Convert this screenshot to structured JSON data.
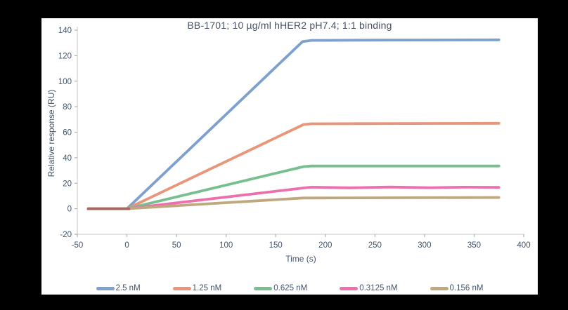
{
  "window": {
    "background_color": "#000000",
    "panel_color": "#ffffff"
  },
  "chart_data": {
    "type": "line",
    "title": "BB-1701; 10 µg/ml hHER2 pH7.4; 1:1 binding",
    "xlabel": "Time (s)",
    "ylabel": "Relative response (RU)",
    "xlim": [
      -50,
      400
    ],
    "ylim": [
      -20,
      140
    ],
    "xticks": [
      -50,
      0,
      50,
      100,
      150,
      200,
      250,
      300,
      350,
      400
    ],
    "yticks": [
      -20,
      0,
      20,
      40,
      60,
      80,
      100,
      120,
      140
    ],
    "grid": false,
    "legend_position": "bottom",
    "axis_line_color": "#d4d4d4",
    "tick_mark_color": "#aab0b8",
    "tick_label_color": "#44546a",
    "title_color": "#475061",
    "line_width": 3.8,
    "baseline_overlay": {
      "description": "overlapping baselines of all concentrations blend to brownish red",
      "color": "#a4695e",
      "points": [
        [
          -39,
          0
        ],
        [
          2,
          0
        ]
      ]
    },
    "series": [
      {
        "name": "2.5 nM",
        "color": "#7da0cf",
        "points": [
          [
            -39,
            0
          ],
          [
            0,
            0
          ],
          [
            177,
            131
          ],
          [
            186,
            132
          ],
          [
            250,
            132.2
          ],
          [
            375,
            132.4
          ]
        ]
      },
      {
        "name": "1.25 nM",
        "color": "#e99579",
        "points": [
          [
            -39,
            0
          ],
          [
            0,
            0
          ],
          [
            178,
            66
          ],
          [
            186,
            66.6
          ],
          [
            280,
            66.8
          ],
          [
            375,
            67
          ]
        ]
      },
      {
        "name": "0.625 nM",
        "color": "#77bf8f",
        "points": [
          [
            -39,
            0
          ],
          [
            0,
            0
          ],
          [
            178,
            33
          ],
          [
            186,
            33.5
          ],
          [
            375,
            33.5
          ]
        ]
      },
      {
        "name": "0.3125 nM",
        "color": "#ee6fae",
        "points": [
          [
            -39,
            0
          ],
          [
            0,
            0
          ],
          [
            178,
            16.3
          ],
          [
            186,
            16.9
          ],
          [
            225,
            16.4
          ],
          [
            265,
            17
          ],
          [
            305,
            16.5
          ],
          [
            340,
            16.9
          ],
          [
            375,
            16.8
          ]
        ]
      },
      {
        "name": "0.156 nM",
        "color": "#c0a87e",
        "points": [
          [
            -39,
            0
          ],
          [
            0,
            0
          ],
          [
            178,
            8.4
          ],
          [
            375,
            8.8
          ]
        ]
      }
    ]
  }
}
